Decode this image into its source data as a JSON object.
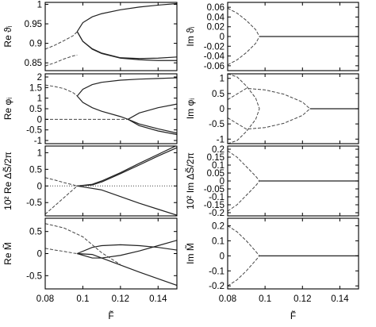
{
  "chart_data": [
    {
      "type": "line",
      "ylabel": "Re ϑᵢ",
      "xlim": [
        0.08,
        0.15
      ],
      "ylim": [
        0.83,
        1.005
      ],
      "xticks": [
        0.08,
        0.1,
        0.12,
        0.14
      ],
      "yticks": [
        "1",
        "0.95",
        "0.9",
        "0.85"
      ],
      "ytick_values": [
        1.0,
        0.95,
        0.9,
        0.85
      ],
      "grid": false,
      "series": [
        {
          "style": "solid",
          "x": [
            0.097,
            0.1,
            0.105,
            0.11,
            0.12,
            0.13,
            0.14,
            0.15
          ],
          "y": [
            0.93,
            0.953,
            0.968,
            0.976,
            0.986,
            0.993,
            0.998,
            1.002
          ]
        },
        {
          "style": "solid",
          "x": [
            0.097,
            0.1,
            0.105,
            0.11,
            0.12,
            0.13,
            0.14,
            0.15
          ],
          "y": [
            0.93,
            0.905,
            0.886,
            0.875,
            0.863,
            0.861,
            0.862,
            0.865
          ]
        },
        {
          "style": "solid",
          "x": [
            0.097,
            0.1,
            0.105,
            0.11,
            0.12,
            0.13,
            0.14,
            0.15
          ],
          "y": [
            0.93,
            0.905,
            0.885,
            0.874,
            0.862,
            0.858,
            0.856,
            0.856
          ]
        },
        {
          "style": "dashed",
          "x": [
            0.08,
            0.085,
            0.09,
            0.095,
            0.097
          ],
          "y": [
            0.885,
            0.895,
            0.907,
            0.92,
            0.93
          ]
        },
        {
          "style": "dashed",
          "x": [
            0.08,
            0.085,
            0.09,
            0.095,
            0.097
          ],
          "y": [
            0.842,
            0.85,
            0.86,
            0.868,
            0.87
          ]
        }
      ]
    },
    {
      "type": "line",
      "ylabel": "Im ϑᵢ",
      "xlim": [
        0.08,
        0.15
      ],
      "ylim": [
        -0.07,
        0.07
      ],
      "xticks": [
        0.08,
        0.1,
        0.12,
        0.14
      ],
      "yticks": [
        "0.06",
        "0.04",
        "0.02",
        "0",
        "-0.02",
        "-0.04",
        "-0.06"
      ],
      "ytick_values": [
        0.06,
        0.04,
        0.02,
        0,
        -0.02,
        -0.04,
        -0.06
      ],
      "grid": false,
      "series": [
        {
          "style": "solid",
          "x": [
            0.097,
            0.15
          ],
          "y": [
            0,
            0
          ]
        },
        {
          "style": "dashed",
          "x": [
            0.08,
            0.085,
            0.09,
            0.095,
            0.097
          ],
          "y": [
            0.058,
            0.048,
            0.033,
            0.014,
            0
          ]
        },
        {
          "style": "dashed",
          "x": [
            0.08,
            0.085,
            0.09,
            0.095,
            0.097
          ],
          "y": [
            -0.058,
            -0.048,
            -0.033,
            -0.014,
            0
          ]
        }
      ]
    },
    {
      "type": "line",
      "ylabel": "Re φᵢ",
      "xlim": [
        0.08,
        0.15
      ],
      "ylim": [
        -1.15,
        2.15
      ],
      "xticks": [
        0.08,
        0.1,
        0.12,
        0.14
      ],
      "yticks": [
        "2",
        "1.5",
        "1",
        "0.5",
        "0",
        "-0.5",
        "-1"
      ],
      "ytick_values": [
        2,
        1.5,
        1,
        0.5,
        0,
        -0.5,
        -1
      ],
      "grid": false,
      "series": [
        {
          "style": "solid",
          "x": [
            0.097,
            0.1,
            0.105,
            0.11,
            0.12,
            0.13,
            0.14,
            0.15
          ],
          "y": [
            1.1,
            1.42,
            1.64,
            1.75,
            1.85,
            1.9,
            1.93,
            1.96
          ]
        },
        {
          "style": "solid",
          "x": [
            0.097,
            0.1,
            0.105,
            0.11,
            0.12,
            0.124,
            0.13,
            0.14,
            0.15
          ],
          "y": [
            1.1,
            0.8,
            0.55,
            0.38,
            0.13,
            0,
            -0.22,
            -0.45,
            -0.65
          ]
        },
        {
          "style": "solid",
          "x": [
            0.124,
            0.13,
            0.14,
            0.15
          ],
          "y": [
            0,
            0.3,
            0.55,
            0.72
          ]
        },
        {
          "style": "solid",
          "x": [
            0.124,
            0.13,
            0.14,
            0.15
          ],
          "y": [
            0,
            -0.3,
            -0.55,
            -0.72
          ]
        },
        {
          "style": "dashed",
          "x": [
            0.08,
            0.085,
            0.09,
            0.095,
            0.097
          ],
          "y": [
            1.62,
            1.55,
            1.45,
            1.25,
            1.1
          ]
        },
        {
          "style": "dashed",
          "x": [
            0.08,
            0.124
          ],
          "y": [
            0,
            0
          ]
        }
      ]
    },
    {
      "type": "line",
      "ylabel": "Im φᵢ",
      "xlim": [
        0.08,
        0.15
      ],
      "ylim": [
        -1.15,
        1.15
      ],
      "xticks": [
        0.08,
        0.1,
        0.12,
        0.14
      ],
      "yticks": [
        "1",
        "0.5",
        "0",
        "-0.5",
        "-1"
      ],
      "ytick_values": [
        1,
        0.5,
        0,
        -0.5,
        -1
      ],
      "grid": false,
      "series": [
        {
          "style": "solid",
          "x": [
            0.124,
            0.15
          ],
          "y": [
            0,
            0
          ]
        },
        {
          "style": "dashed",
          "x": [
            0.08,
            0.085,
            0.09,
            0.095,
            0.097
          ],
          "y": [
            1.15,
            1.05,
            0.75,
            0.35,
            0
          ]
        },
        {
          "style": "dashed",
          "x": [
            0.08,
            0.085,
            0.09,
            0.095,
            0.097
          ],
          "y": [
            -1.15,
            -1.05,
            -0.75,
            -0.35,
            0
          ]
        },
        {
          "style": "dashed",
          "x": [
            0.08,
            0.09,
            0.1,
            0.11,
            0.12,
            0.124
          ],
          "y": [
            0.3,
            0.67,
            0.62,
            0.48,
            0.22,
            0
          ]
        },
        {
          "style": "dashed",
          "x": [
            0.08,
            0.09,
            0.1,
            0.11,
            0.12,
            0.124
          ],
          "y": [
            -0.3,
            -0.67,
            -0.62,
            -0.48,
            -0.22,
            0
          ]
        }
      ]
    },
    {
      "type": "line",
      "ylabel": "10² Re ΔS̃/2π",
      "xlim": [
        0.08,
        0.15
      ],
      "ylim": [
        -0.9,
        1.2
      ],
      "xticks": [
        0.08,
        0.1,
        0.12,
        0.14
      ],
      "yticks": [
        "1",
        "0.5",
        "0",
        "-0.5"
      ],
      "ytick_values": [
        1,
        0.5,
        0,
        -0.5
      ],
      "grid": false,
      "series": [
        {
          "style": "solid",
          "x": [
            0.097,
            0.105,
            0.11,
            0.12,
            0.13,
            0.14,
            0.15
          ],
          "y": [
            0,
            0.05,
            0.15,
            0.4,
            0.68,
            0.95,
            1.22
          ]
        },
        {
          "style": "solid",
          "x": [
            0.097,
            0.105,
            0.11,
            0.12,
            0.13,
            0.14,
            0.15
          ],
          "y": [
            0,
            0.03,
            0.12,
            0.37,
            0.63,
            0.9,
            1.15
          ]
        },
        {
          "style": "solid",
          "x": [
            0.097,
            0.11,
            0.12,
            0.13,
            0.14,
            0.15
          ],
          "y": [
            0,
            -0.12,
            -0.32,
            -0.52,
            -0.7,
            -0.88
          ]
        },
        {
          "style": "dashed",
          "x": [
            0.08,
            0.085,
            0.09,
            0.095,
            0.097
          ],
          "y": [
            0.25,
            0.18,
            0.1,
            0.03,
            0
          ]
        },
        {
          "style": "dashed",
          "x": [
            0.08,
            0.085,
            0.09,
            0.095,
            0.097
          ],
          "y": [
            -0.85,
            -0.6,
            -0.35,
            -0.1,
            0
          ]
        },
        {
          "style": "dotted",
          "x": [
            0.08,
            0.15
          ],
          "y": [
            0,
            0
          ]
        }
      ]
    },
    {
      "type": "line",
      "ylabel": "10² Im ΔS̃/2π",
      "xlim": [
        0.08,
        0.15
      ],
      "ylim": [
        -0.22,
        0.22
      ],
      "xticks": [
        0.08,
        0.1,
        0.12,
        0.14
      ],
      "yticks": [
        "0.2",
        "0.15",
        "0.1",
        "0.05",
        "0",
        "-0.05",
        "-0.1",
        "-0.15",
        "-0.2"
      ],
      "ytick_values": [
        0.2,
        0.15,
        0.1,
        0.05,
        0,
        -0.05,
        -0.1,
        -0.15,
        -0.2
      ],
      "grid": false,
      "series": [
        {
          "style": "solid",
          "x": [
            0.097,
            0.15
          ],
          "y": [
            0,
            0
          ]
        },
        {
          "style": "dashed",
          "x": [
            0.08,
            0.085,
            0.09,
            0.095,
            0.097
          ],
          "y": [
            0.19,
            0.15,
            0.09,
            0.03,
            0
          ]
        },
        {
          "style": "dashed",
          "x": [
            0.08,
            0.085,
            0.09,
            0.095,
            0.097
          ],
          "y": [
            -0.19,
            -0.15,
            -0.09,
            -0.03,
            0
          ]
        }
      ]
    },
    {
      "type": "line",
      "ylabel": "Re M̃",
      "xlim": [
        0.08,
        0.15
      ],
      "ylim": [
        -0.8,
        0.8
      ],
      "xticks": [
        0.08,
        0.1,
        0.12,
        0.14
      ],
      "xticklabels": [
        "0.08",
        "0.1",
        "0.12",
        "0.14"
      ],
      "yticks": [
        "0.5",
        "0",
        "-0.5"
      ],
      "ytick_values": [
        0.5,
        0,
        -0.5
      ],
      "xlabel": "F̃",
      "grid": false,
      "series": [
        {
          "style": "solid",
          "x": [
            0.097,
            0.105,
            0.11,
            0.12,
            0.13,
            0.14,
            0.15
          ],
          "y": [
            0,
            0.14,
            0.18,
            0.2,
            0.18,
            0.14,
            0.08
          ]
        },
        {
          "style": "solid",
          "x": [
            0.097,
            0.105,
            0.11,
            0.12,
            0.13,
            0.14,
            0.15
          ],
          "y": [
            0,
            -0.1,
            -0.1,
            -0.04,
            0.06,
            0.18,
            0.3
          ]
        },
        {
          "style": "solid",
          "x": [
            0.097,
            0.105,
            0.11,
            0.12,
            0.13,
            0.14,
            0.15
          ],
          "y": [
            0,
            -0.02,
            -0.1,
            -0.26,
            -0.42,
            -0.57,
            -0.72
          ]
        },
        {
          "style": "dashed",
          "x": [
            0.08,
            0.085,
            0.09,
            0.095,
            0.097
          ],
          "y": [
            0.12,
            0.08,
            0.05,
            0.01,
            0
          ]
        },
        {
          "style": "dashed",
          "x": [
            0.08,
            0.09,
            0.1,
            0.11,
            0.12
          ],
          "y": [
            0.68,
            0.58,
            0.38,
            0.02,
            -0.25
          ]
        }
      ]
    },
    {
      "type": "line",
      "ylabel": "Im M̃",
      "xlim": [
        0.08,
        0.15
      ],
      "ylim": [
        -0.22,
        0.25
      ],
      "xticks": [
        0.08,
        0.1,
        0.12,
        0.14
      ],
      "xticklabels": [
        "0.08",
        "0.1",
        "0.12",
        "0.14"
      ],
      "yticks": [
        "0.2",
        "0.1",
        "0",
        "-0.1",
        "-0.2"
      ],
      "ytick_values": [
        0.2,
        0.1,
        0,
        -0.1,
        -0.2
      ],
      "xlabel": "F̃",
      "grid": false,
      "series": [
        {
          "style": "solid",
          "x": [
            0.097,
            0.15
          ],
          "y": [
            0,
            0
          ]
        },
        {
          "style": "dashed",
          "x": [
            0.08,
            0.085,
            0.09,
            0.095,
            0.097
          ],
          "y": [
            0.2,
            0.16,
            0.1,
            0.03,
            0
          ]
        },
        {
          "style": "dashed",
          "x": [
            0.08,
            0.085,
            0.09,
            0.095,
            0.097
          ],
          "y": [
            -0.2,
            -0.16,
            -0.1,
            -0.03,
            0
          ]
        }
      ]
    }
  ]
}
